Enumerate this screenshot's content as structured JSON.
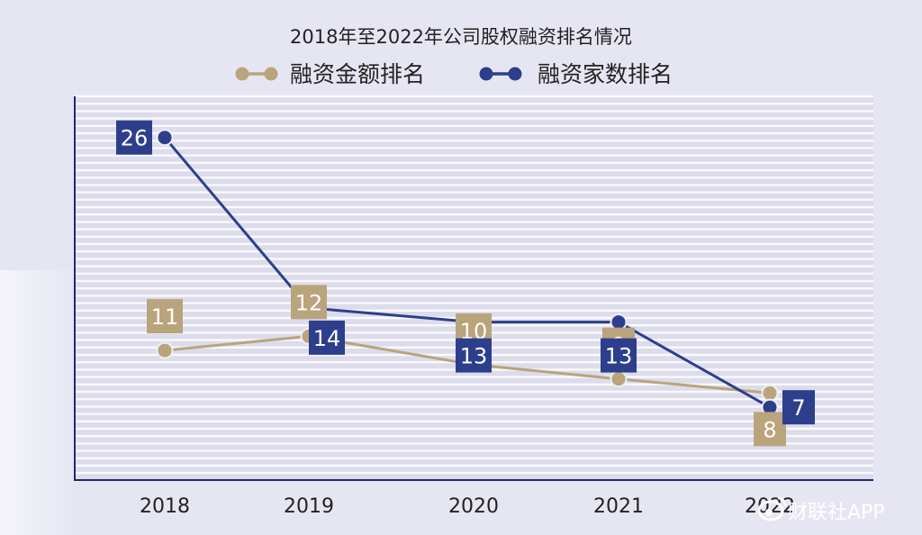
{
  "chart_data": {
    "type": "line",
    "title": "2018年至2022年公司股权融资排名情况",
    "categories": [
      "2018",
      "2019",
      "2020",
      "2021",
      "2022"
    ],
    "series": [
      {
        "name": "融资金额排名",
        "color": "#b9a47c",
        "values": [
          11,
          12,
          10,
          9,
          8
        ]
      },
      {
        "name": "融资家数排名",
        "color": "#2d3f8c",
        "values": [
          26,
          14,
          13,
          13,
          7
        ]
      }
    ],
    "y_axis": {
      "reversed": true,
      "range": [
        29,
        6
      ],
      "tick_labels_shown": false
    },
    "grid": true,
    "legend_position": "top"
  },
  "watermark": {
    "text": "财联社APP",
    "icon": "weibo-logo-icon"
  }
}
